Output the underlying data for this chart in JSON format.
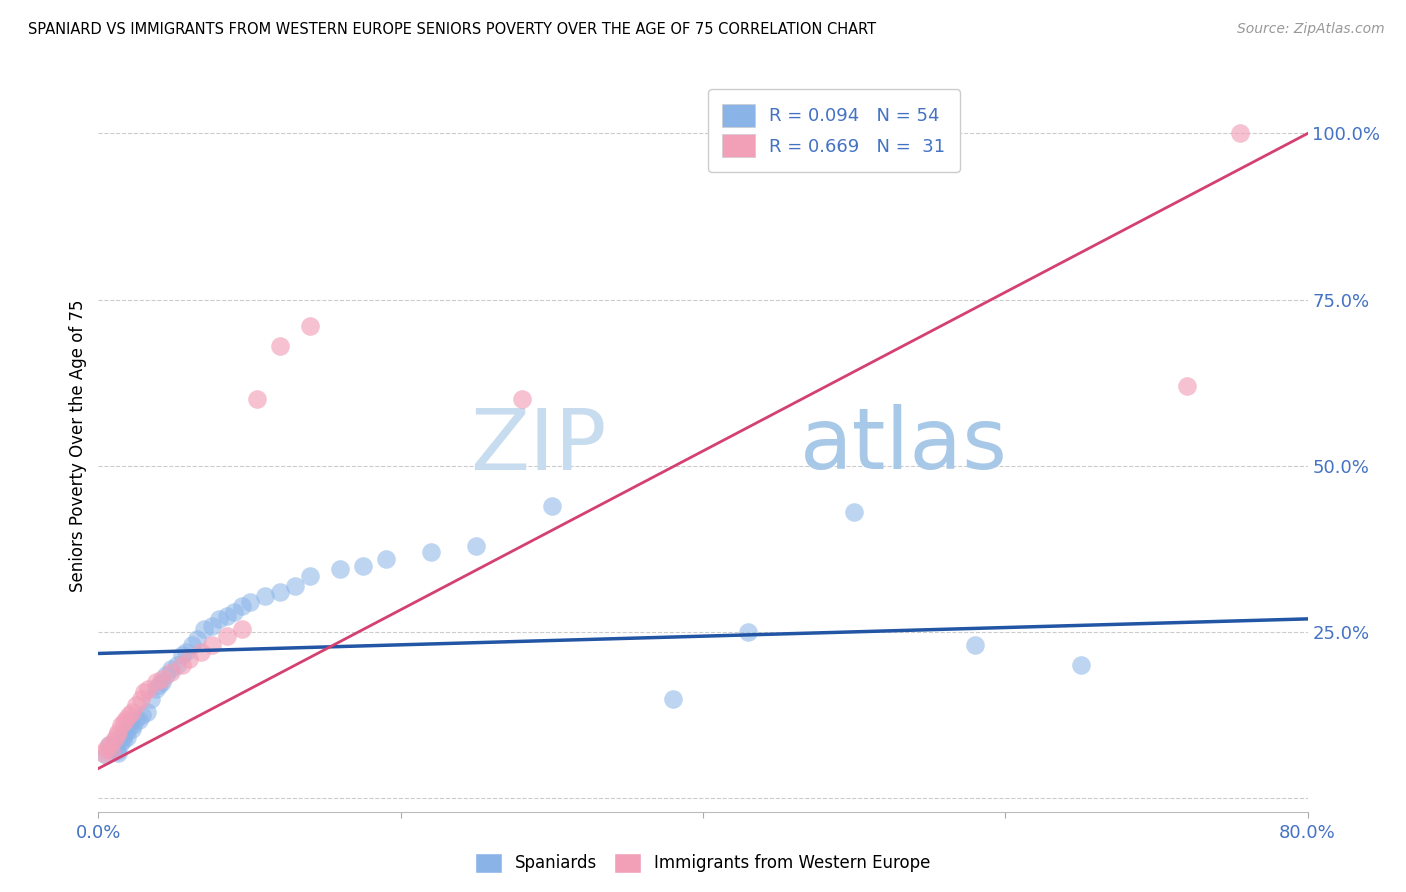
{
  "title": "SPANIARD VS IMMIGRANTS FROM WESTERN EUROPE SENIORS POVERTY OVER THE AGE OF 75 CORRELATION CHART",
  "source": "Source: ZipAtlas.com",
  "ylabel": "Seniors Poverty Over the Age of 75",
  "xlim": [
    0.0,
    0.8
  ],
  "ylim": [
    -0.02,
    1.08
  ],
  "blue_color": "#8ab4e8",
  "pink_color": "#f2a0b8",
  "blue_line_color": "#2255a4",
  "pink_line_color": "#d44070",
  "legend_R1": "R = 0.094",
  "legend_N1": "N = 54",
  "legend_R2": "R = 0.669",
  "legend_N2": "N =  31",
  "blue_line_x": [
    0.0,
    0.8
  ],
  "blue_line_y": [
    0.218,
    0.27
  ],
  "pink_line_x": [
    0.0,
    0.8
  ],
  "pink_line_y": [
    0.045,
    1.0
  ],
  "blue_scatter_x": [
    0.005,
    0.007,
    0.008,
    0.01,
    0.011,
    0.012,
    0.013,
    0.014,
    0.015,
    0.016,
    0.017,
    0.018,
    0.019,
    0.02,
    0.021,
    0.022,
    0.023,
    0.025,
    0.027,
    0.029,
    0.032,
    0.035,
    0.038,
    0.04,
    0.042,
    0.045,
    0.048,
    0.052,
    0.055,
    0.058,
    0.062,
    0.065,
    0.07,
    0.075,
    0.08,
    0.085,
    0.09,
    0.095,
    0.1,
    0.11,
    0.12,
    0.13,
    0.14,
    0.16,
    0.175,
    0.19,
    0.22,
    0.25,
    0.3,
    0.38,
    0.43,
    0.5,
    0.58,
    0.65
  ],
  "blue_scatter_y": [
    0.065,
    0.08,
    0.075,
    0.085,
    0.078,
    0.072,
    0.068,
    0.082,
    0.09,
    0.088,
    0.095,
    0.1,
    0.092,
    0.108,
    0.115,
    0.105,
    0.11,
    0.12,
    0.118,
    0.125,
    0.13,
    0.15,
    0.165,
    0.17,
    0.175,
    0.185,
    0.195,
    0.2,
    0.215,
    0.22,
    0.23,
    0.24,
    0.255,
    0.26,
    0.27,
    0.275,
    0.28,
    0.29,
    0.295,
    0.305,
    0.31,
    0.32,
    0.335,
    0.345,
    0.35,
    0.36,
    0.37,
    0.38,
    0.44,
    0.15,
    0.25,
    0.43,
    0.23,
    0.2
  ],
  "pink_scatter_x": [
    0.003,
    0.005,
    0.007,
    0.008,
    0.01,
    0.012,
    0.013,
    0.015,
    0.017,
    0.018,
    0.02,
    0.022,
    0.025,
    0.028,
    0.03,
    0.033,
    0.038,
    0.042,
    0.048,
    0.055,
    0.06,
    0.068,
    0.075,
    0.085,
    0.095,
    0.105,
    0.12,
    0.14,
    0.28,
    0.72,
    0.755
  ],
  "pink_scatter_y": [
    0.068,
    0.075,
    0.08,
    0.072,
    0.088,
    0.095,
    0.1,
    0.11,
    0.115,
    0.12,
    0.125,
    0.13,
    0.14,
    0.15,
    0.16,
    0.165,
    0.175,
    0.18,
    0.19,
    0.2,
    0.21,
    0.22,
    0.23,
    0.245,
    0.255,
    0.6,
    0.68,
    0.71,
    0.6,
    0.62,
    1.0
  ]
}
